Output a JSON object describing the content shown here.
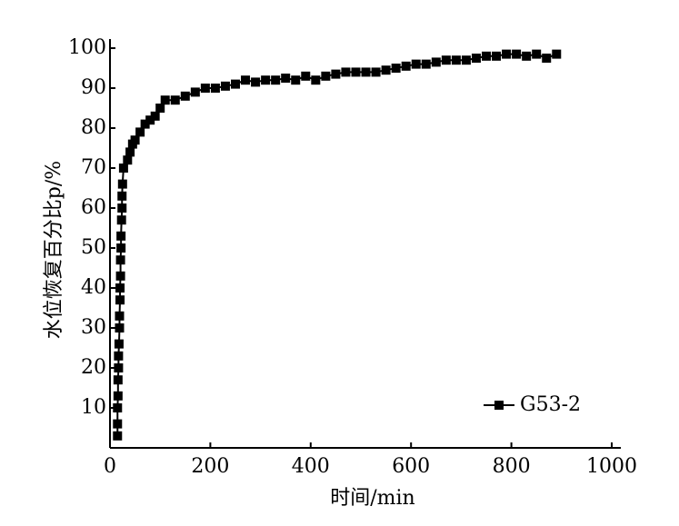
{
  "chart_data": {
    "type": "line",
    "x_label": "时间/min",
    "y_label": "水位恢复百分比p/%",
    "xlim": [
      0,
      1000
    ],
    "xticks": [
      0,
      200,
      400,
      600,
      800,
      1000
    ],
    "ylim": [
      0,
      100
    ],
    "yticks": [
      10,
      20,
      30,
      40,
      50,
      60,
      70,
      80,
      90,
      100
    ],
    "legend": "lower right",
    "series": [
      {
        "name": "G53-2",
        "color": "#000000",
        "x": [
          15,
          15,
          15,
          16,
          16,
          17,
          17,
          18,
          19,
          19,
          20,
          20,
          21,
          21,
          22,
          22,
          23,
          24,
          24,
          25,
          27,
          35,
          40,
          45,
          50,
          60,
          70,
          80,
          90,
          100,
          110,
          130,
          150,
          170,
          190,
          210,
          230,
          250,
          270,
          290,
          310,
          330,
          350,
          370,
          390,
          410,
          430,
          450,
          470,
          490,
          510,
          530,
          550,
          570,
          590,
          610,
          630,
          650,
          670,
          690,
          710,
          730,
          750,
          770,
          790,
          810,
          830,
          850,
          870,
          890
        ],
        "values": [
          3,
          6,
          10,
          13,
          17,
          20,
          23,
          26,
          30,
          33,
          37,
          40,
          43,
          47,
          50,
          53,
          57,
          60,
          63,
          66,
          70,
          72,
          74,
          76,
          77,
          79,
          81,
          82,
          83,
          85,
          87,
          87,
          88,
          89,
          90,
          90,
          90.5,
          91,
          92,
          91.5,
          92,
          92,
          92.5,
          92,
          93,
          92,
          93,
          93.5,
          94,
          94,
          94,
          94,
          94.5,
          95,
          95.5,
          96,
          96,
          96.5,
          97,
          97,
          97,
          97.5,
          98,
          98,
          98.5,
          98.5,
          98,
          98.5,
          97.5,
          98.5
        ]
      }
    ]
  }
}
